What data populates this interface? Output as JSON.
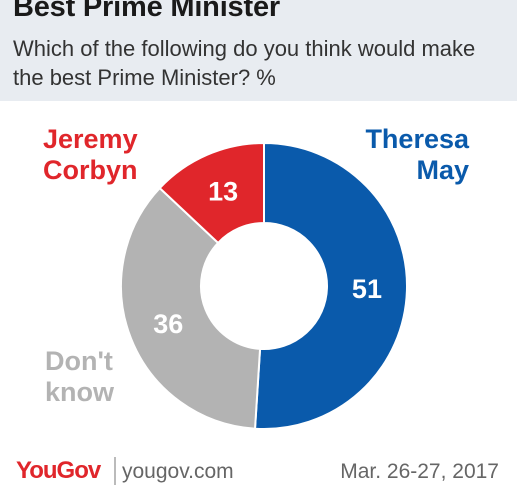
{
  "header": {
    "title": "Best Prime Minister",
    "subtitle": "Which of the following do you think would make the best Prime Minister? %"
  },
  "chart_data": {
    "type": "pie",
    "style": "donut",
    "series": [
      {
        "name": "Theresa May",
        "label_lines": [
          "Theresa",
          "May"
        ],
        "value": 51,
        "color": "#0a5aab"
      },
      {
        "name": "Don't know",
        "label_lines": [
          "Don't",
          "know"
        ],
        "value": 36,
        "color": "#b3b3b3"
      },
      {
        "name": "Jeremy Corbyn",
        "label_lines": [
          "Jeremy",
          "Corbyn"
        ],
        "value": 13,
        "color": "#e0262b"
      }
    ]
  },
  "footer": {
    "logo": "YouGov",
    "site": "yougov.com",
    "date": "Mar. 26-27, 2017"
  }
}
